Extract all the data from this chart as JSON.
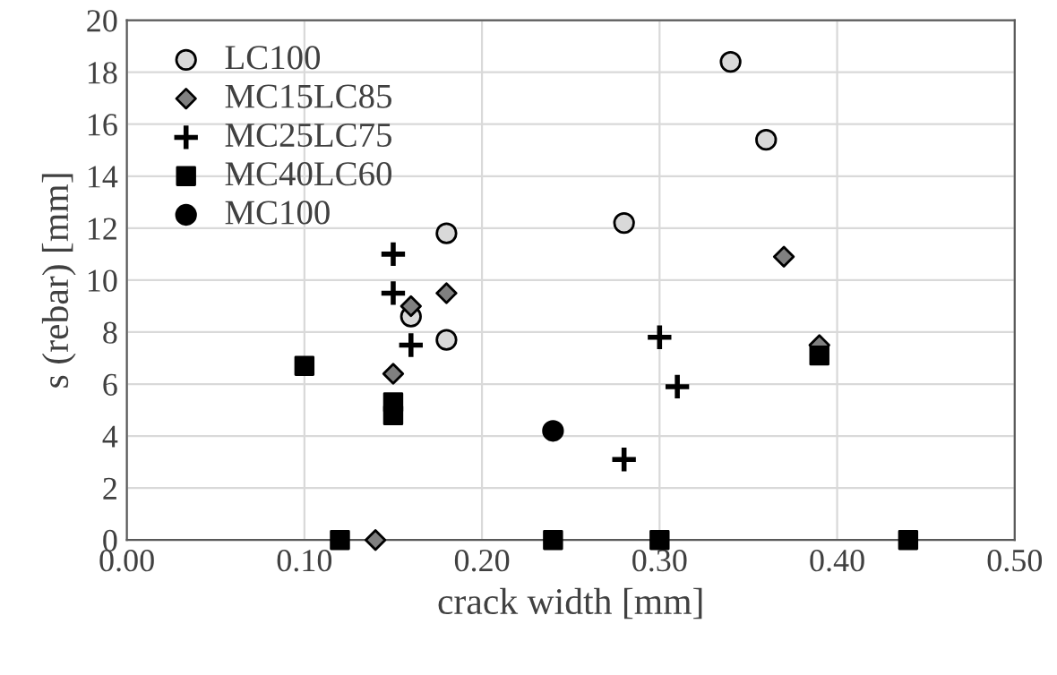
{
  "chart_data": {
    "type": "scatter",
    "xlabel": "crack width [mm]",
    "ylabel": "s (rebar) [mm]",
    "xlim": [
      0,
      0.5
    ],
    "xticks": [
      {
        "value": 0,
        "label": "0.00"
      },
      {
        "value": 0.1,
        "label": "0.10"
      },
      {
        "value": 0.2,
        "label": "0.20"
      },
      {
        "value": 0.3,
        "label": "0.30"
      },
      {
        "value": 0.4,
        "label": "0.40"
      },
      {
        "value": 0.5,
        "label": "0.50"
      }
    ],
    "ylim": [
      0,
      20
    ],
    "yticks": [
      0,
      2,
      4,
      6,
      8,
      10,
      12,
      14,
      16,
      18,
      20
    ],
    "grid": true,
    "legend": "top left",
    "series": [
      {
        "name": "LC100",
        "color": "#d9d9d9",
        "marker": "circle",
        "x": [
          0.34,
          0.36,
          0.28,
          0.18,
          0.16,
          0.18
        ],
        "values": [
          18.4,
          15.4,
          12.2,
          11.8,
          8.6,
          7.7
        ]
      },
      {
        "name": "MC15LC85",
        "color": "#808080",
        "marker": "diamond",
        "x": [
          0.37,
          0.18,
          0.16,
          0.15,
          0.14,
          0.39
        ],
        "values": [
          10.9,
          9.5,
          9.0,
          6.4,
          0,
          7.5
        ]
      },
      {
        "name": "MC25LC75",
        "color": "#000000",
        "marker": "cross",
        "x": [
          0.15,
          0.15,
          0.16,
          0.3,
          0.31,
          0.28
        ],
        "values": [
          11.0,
          9.5,
          7.5,
          7.8,
          5.9,
          3.1
        ]
      },
      {
        "name": "MC40LC60",
        "color": "#000000",
        "marker": "square",
        "x": [
          0.1,
          0.15,
          0.15,
          0.12,
          0.24,
          0.3,
          0.44,
          0.39
        ],
        "values": [
          6.7,
          5.3,
          4.8,
          0,
          0,
          0,
          0,
          7.1
        ]
      },
      {
        "name": "MC100",
        "color": "#000000",
        "marker": "circle",
        "x": [
          0.24
        ],
        "values": [
          4.2
        ]
      }
    ]
  }
}
